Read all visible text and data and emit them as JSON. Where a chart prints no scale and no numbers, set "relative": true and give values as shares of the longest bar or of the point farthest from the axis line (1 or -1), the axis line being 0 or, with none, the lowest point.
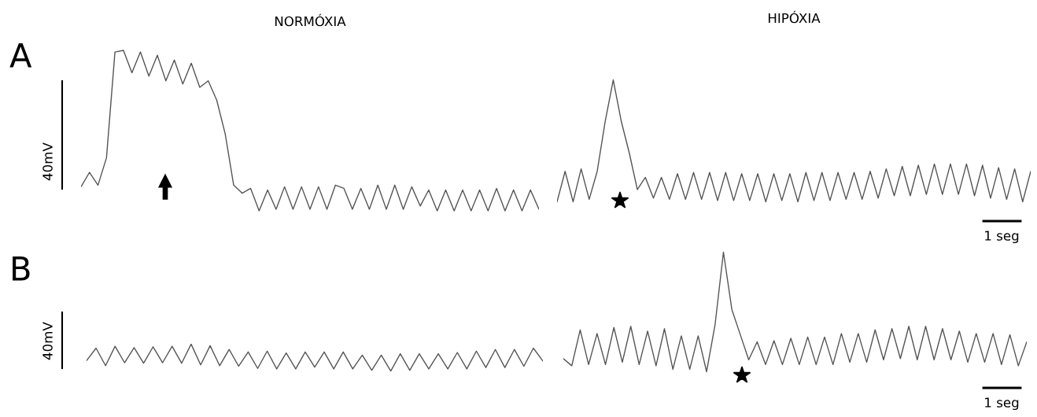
{
  "chart_data": [
    {
      "type": "line",
      "title": "NORMÓXIA",
      "relative": true,
      "annotations": [
        "A",
        "40mV"
      ],
      "line_style": "solid",
      "categories": [
        null,
        null,
        null,
        null,
        null,
        null,
        null,
        null,
        null,
        null,
        null,
        null,
        null,
        null,
        null,
        null,
        null,
        null,
        null,
        null,
        null,
        null,
        null,
        null,
        null,
        null,
        null,
        null,
        null,
        null,
        null,
        null,
        null,
        null,
        null,
        null,
        null,
        null,
        null,
        null,
        null,
        null,
        null,
        null,
        null,
        null,
        null,
        null,
        null,
        null,
        null,
        null,
        null,
        null,
        null
      ],
      "series": [
        {
          "color": "#555555",
          "values": [
            0.15,
            0.24,
            0.16,
            0.33,
            0.99,
            1.0,
            0.86,
            0.99,
            0.84,
            0.97,
            0.81,
            0.94,
            0.79,
            0.92,
            0.77,
            0.81,
            0.69,
            0.48,
            0.16,
            0.11,
            0.14,
            0.0,
            0.13,
            0.01,
            0.15,
            0.01,
            0.15,
            0.01,
            0.15,
            0.01,
            0.16,
            0.14,
            0.01,
            0.14,
            0.01,
            0.16,
            0.01,
            0.16,
            0.01,
            0.15,
            0.03,
            0.13,
            0.0,
            0.13,
            0.0,
            0.13,
            0.0,
            0.13,
            0.0,
            0.14,
            0.0,
            0.13,
            0.0,
            0.13,
            0.01
          ]
        }
      ]
    },
    {
      "type": "line",
      "title": "HIPÓXIA",
      "relative": true,
      "annotations": [
        "1 seg"
      ],
      "line_style": "solid",
      "categories": [
        null,
        null,
        null,
        null,
        null,
        null,
        null,
        null,
        null,
        null,
        null,
        null,
        null,
        null,
        null,
        null,
        null,
        null,
        null,
        null,
        null,
        null,
        null,
        null,
        null,
        null,
        null,
        null,
        null,
        null,
        null,
        null,
        null,
        null,
        null,
        null,
        null,
        null,
        null,
        null,
        null,
        null,
        null,
        null,
        null,
        null,
        null,
        null,
        null,
        null,
        null,
        null,
        null,
        null,
        null,
        null,
        null,
        null,
        null,
        null
      ],
      "series": [
        {
          "color": "#555555",
          "values": [
            0.0,
            0.25,
            0.0,
            0.27,
            0.02,
            0.25,
            0.66,
            1.0,
            0.66,
            0.4,
            0.1,
            0.2,
            0.03,
            0.2,
            0.02,
            0.23,
            0.02,
            0.24,
            0.02,
            0.24,
            0.01,
            0.24,
            0.01,
            0.23,
            0.01,
            0.23,
            0.0,
            0.23,
            0.01,
            0.23,
            0.0,
            0.24,
            0.01,
            0.24,
            0.01,
            0.24,
            0.02,
            0.24,
            0.02,
            0.25,
            0.03,
            0.27,
            0.05,
            0.29,
            0.05,
            0.3,
            0.06,
            0.31,
            0.06,
            0.31,
            0.06,
            0.31,
            0.05,
            0.3,
            0.03,
            0.28,
            0.02,
            0.27,
            0.0,
            0.25
          ]
        }
      ]
    },
    {
      "type": "line",
      "relative": true,
      "annotations": [
        "B",
        "40mV"
      ],
      "line_style": "solid",
      "categories": [
        null,
        null,
        null,
        null,
        null,
        null,
        null,
        null,
        null,
        null,
        null,
        null,
        null,
        null,
        null,
        null,
        null,
        null,
        null,
        null,
        null,
        null,
        null,
        null,
        null,
        null,
        null,
        null,
        null,
        null,
        null,
        null,
        null,
        null,
        null,
        null,
        null,
        null,
        null,
        null,
        null,
        null,
        null,
        null,
        null,
        null,
        null,
        null,
        null
      ],
      "series": [
        {
          "color": "#555555",
          "values": [
            0.39,
            0.85,
            0.2,
            0.92,
            0.31,
            0.87,
            0.29,
            0.9,
            0.31,
            0.92,
            0.29,
            1.0,
            0.23,
            0.94,
            0.2,
            0.8,
            0.18,
            0.71,
            0.1,
            0.74,
            0.08,
            0.67,
            0.08,
            0.71,
            0.15,
            0.71,
            0.08,
            0.71,
            0.08,
            0.59,
            0.03,
            0.59,
            0.0,
            0.64,
            0.03,
            0.64,
            0.08,
            0.64,
            0.08,
            0.69,
            0.08,
            0.74,
            0.13,
            0.8,
            0.13,
            0.8,
            0.18,
            0.85,
            0.37
          ]
        }
      ]
    },
    {
      "type": "line",
      "relative": true,
      "annotations": [
        "1 seg"
      ],
      "line_style": "solid",
      "categories": [
        null,
        null,
        null,
        null,
        null,
        null,
        null,
        null,
        null,
        null,
        null,
        null,
        null,
        null,
        null,
        null,
        null,
        null,
        null,
        null,
        null,
        null,
        null,
        null,
        null,
        null,
        null,
        null,
        null,
        null,
        null,
        null,
        null,
        null,
        null,
        null,
        null,
        null,
        null,
        null,
        null,
        null,
        null,
        null,
        null,
        null,
        null,
        null,
        null,
        null,
        null,
        null,
        null,
        null,
        null,
        null
      ],
      "series": [
        {
          "color": "#555555",
          "values": [
            0.11,
            0.05,
            0.35,
            0.06,
            0.32,
            0.06,
            0.37,
            0.08,
            0.38,
            0.06,
            0.34,
            0.05,
            0.36,
            0.02,
            0.3,
            0.02,
            0.3,
            0.0,
            0.39,
            1.0,
            0.52,
            0.31,
            0.1,
            0.25,
            0.06,
            0.26,
            0.06,
            0.28,
            0.06,
            0.29,
            0.06,
            0.29,
            0.06,
            0.32,
            0.08,
            0.32,
            0.08,
            0.35,
            0.1,
            0.36,
            0.11,
            0.38,
            0.1,
            0.38,
            0.1,
            0.36,
            0.1,
            0.34,
            0.08,
            0.32,
            0.08,
            0.32,
            0.06,
            0.31,
            0.05,
            0.25
          ]
        }
      ]
    }
  ]
}
